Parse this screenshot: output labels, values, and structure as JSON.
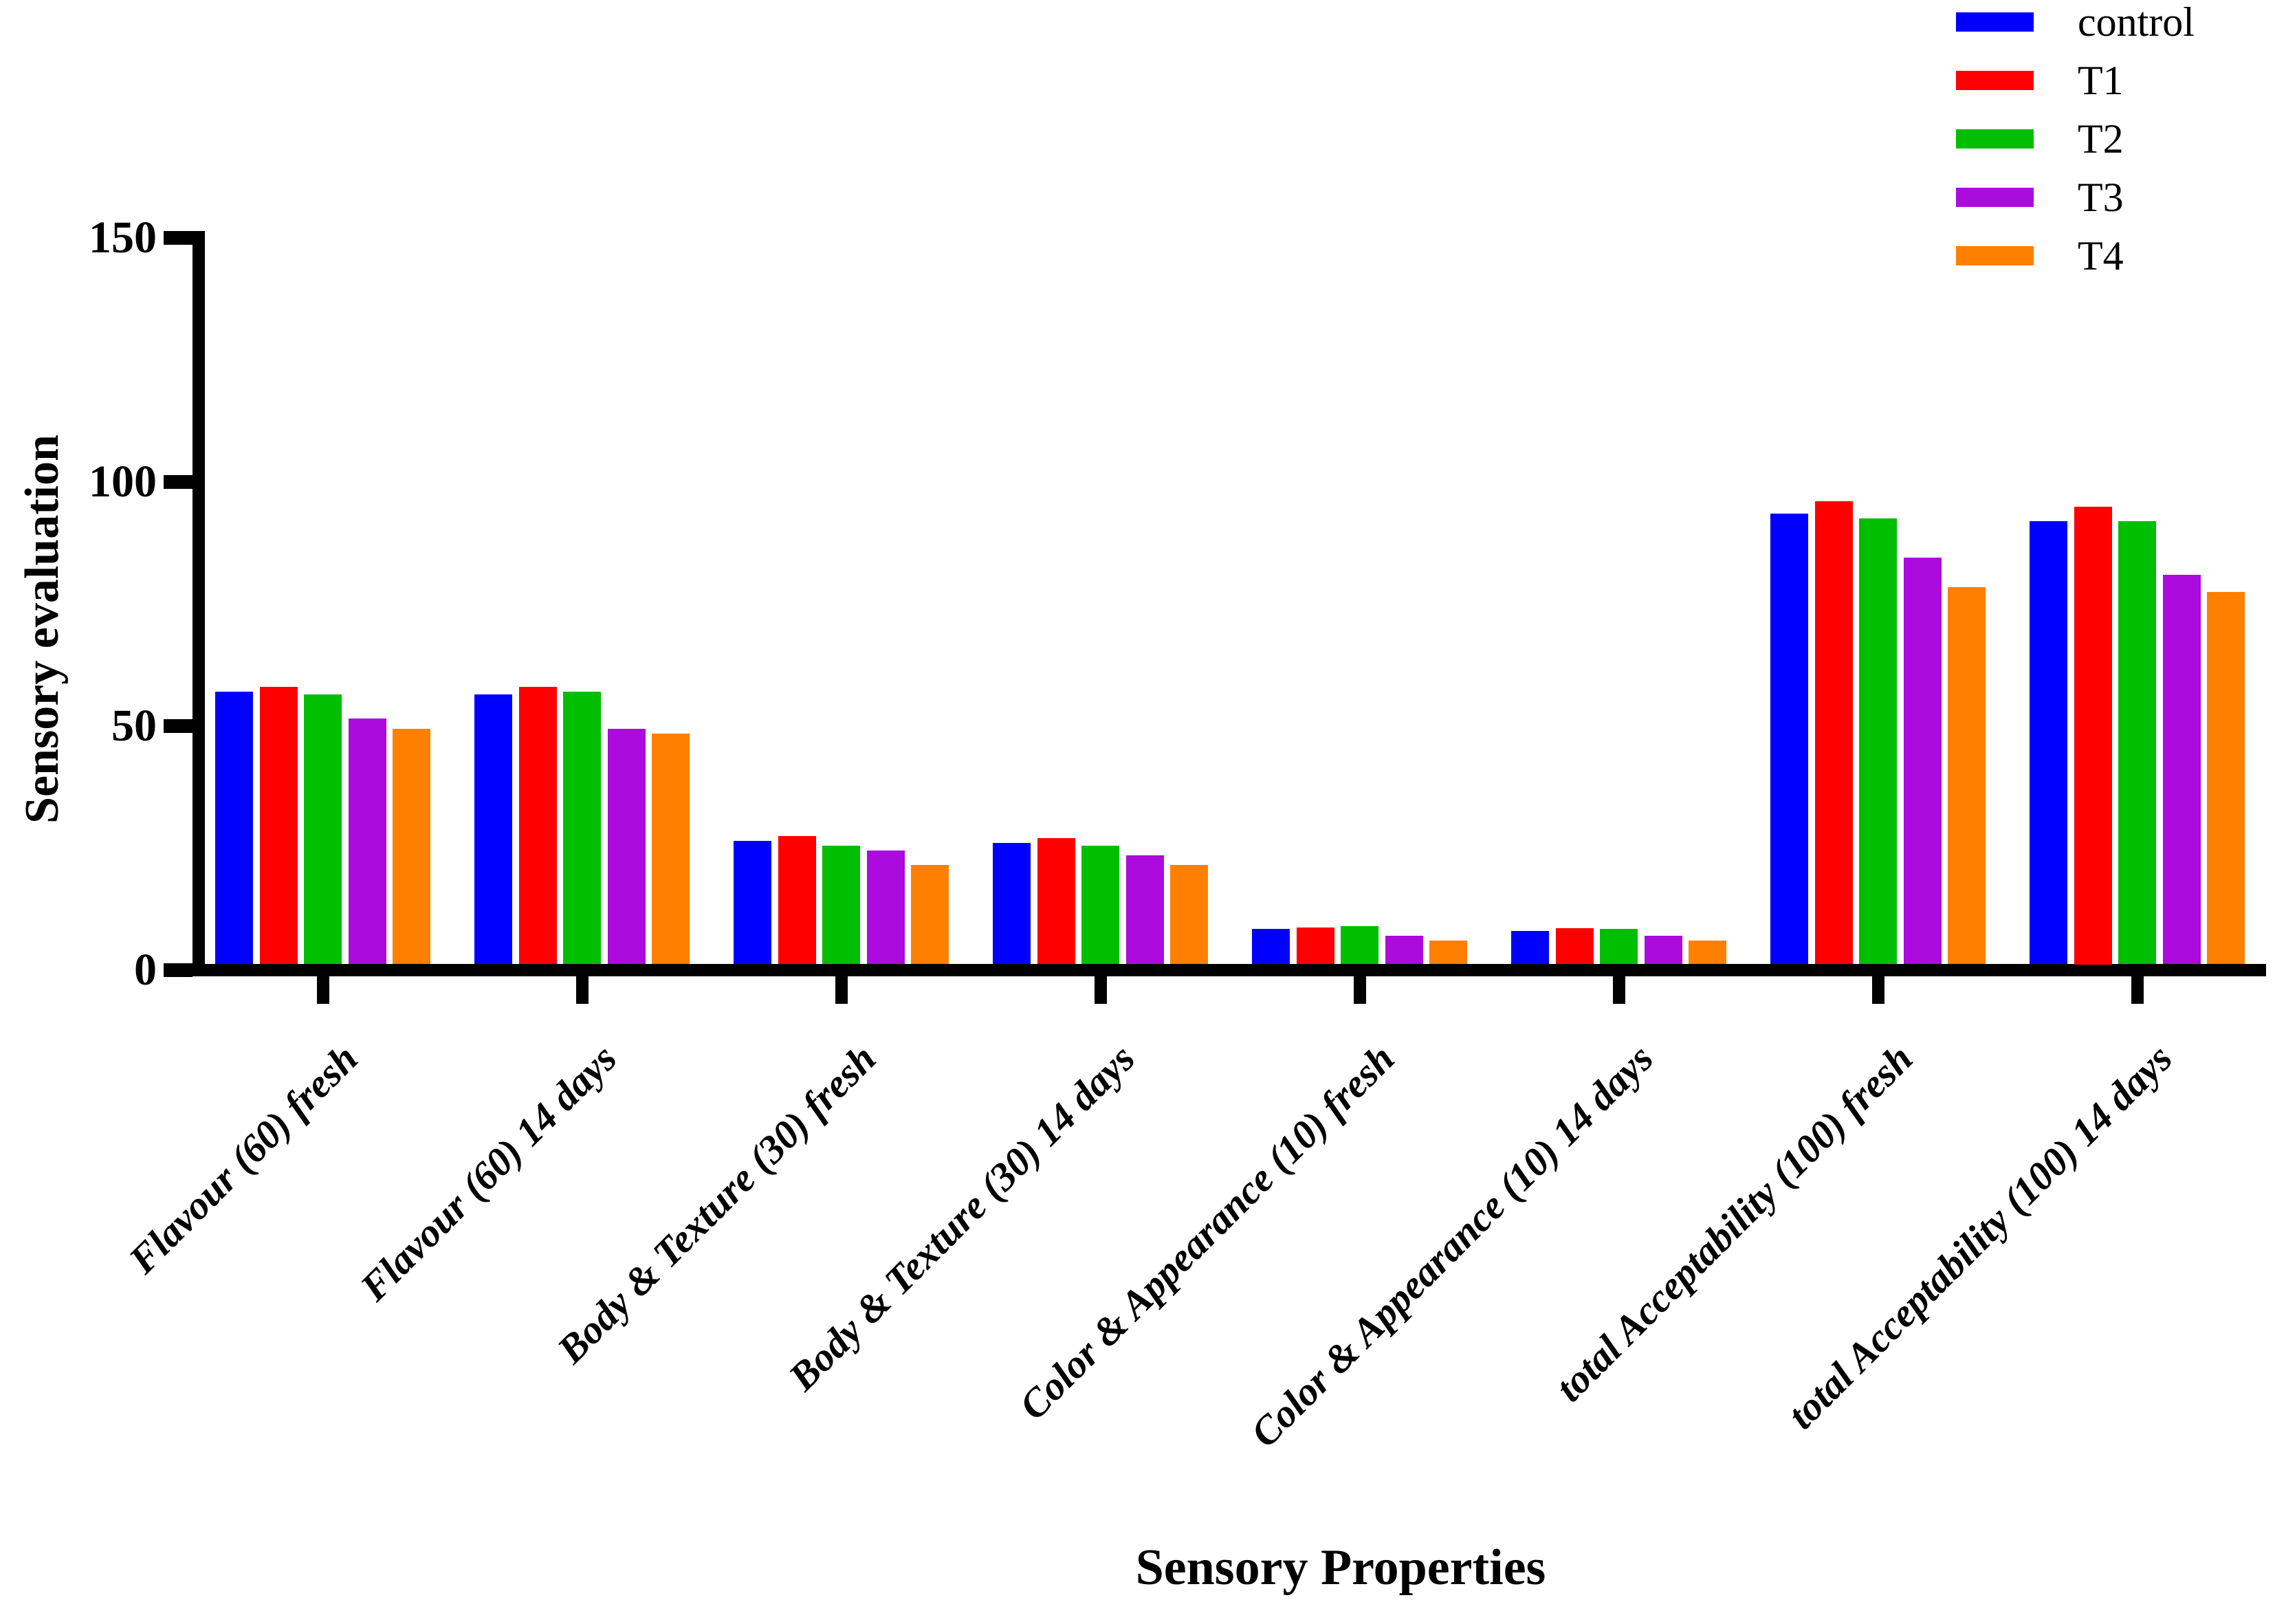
{
  "chart_data": {
    "type": "bar",
    "title": "",
    "xlabel": "Sensory Properties",
    "ylabel": "Sensory evaluation",
    "ylim": [
      0,
      150
    ],
    "yticks": [
      0,
      50,
      100,
      150
    ],
    "grid": false,
    "legend_position": "top-right",
    "categories": [
      "Flavour (60) fresh",
      "Flavour (60) 14 days",
      "Body & Texture (30) fresh",
      "Body & Texture (30) 14 days",
      "Color & Appearance (10) fresh",
      "Color & Appearance (10) 14 days",
      "total Acceptability (100) fresh",
      "total Acceptability (100) 14 days"
    ],
    "series": [
      {
        "name": "control",
        "color": "#0000FF",
        "values": [
          57,
          56.5,
          26.5,
          26,
          8.5,
          8,
          93.5,
          92
        ]
      },
      {
        "name": "T1",
        "color": "#FF0000",
        "values": [
          58,
          58,
          27.5,
          27,
          8.8,
          8.6,
          96,
          95
        ]
      },
      {
        "name": "T2",
        "color": "#00BE00",
        "values": [
          56.5,
          57,
          25.5,
          25.5,
          9,
          8.4,
          92.5,
          92
        ]
      },
      {
        "name": "T3",
        "color": "#AC0BDD",
        "values": [
          51.5,
          49.5,
          24.5,
          23.5,
          7,
          7,
          84.5,
          81
        ]
      },
      {
        "name": "T4",
        "color": "#FF7F00",
        "values": [
          49.5,
          48.5,
          21.5,
          21.5,
          6,
          6,
          78.5,
          77.5
        ]
      }
    ],
    "axis_color": "#000000"
  }
}
